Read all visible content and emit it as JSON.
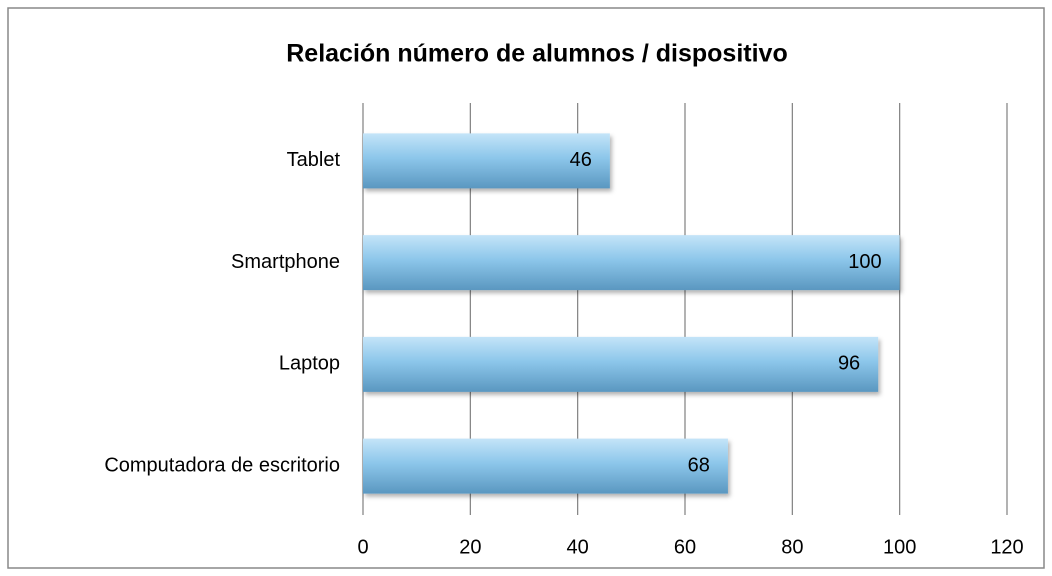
{
  "chart_data": {
    "type": "bar",
    "orientation": "horizontal",
    "title": "Relación número de alumnos / dispositivo",
    "categories": [
      "Tablet",
      "Smartphone",
      "Laptop",
      "Computadora de escritorio"
    ],
    "values": [
      46,
      100,
      96,
      68
    ],
    "color": "#8cc6ea",
    "xlim": [
      0,
      120
    ],
    "xticks": [
      0,
      20,
      40,
      60,
      80,
      100,
      120
    ],
    "grid": true
  }
}
